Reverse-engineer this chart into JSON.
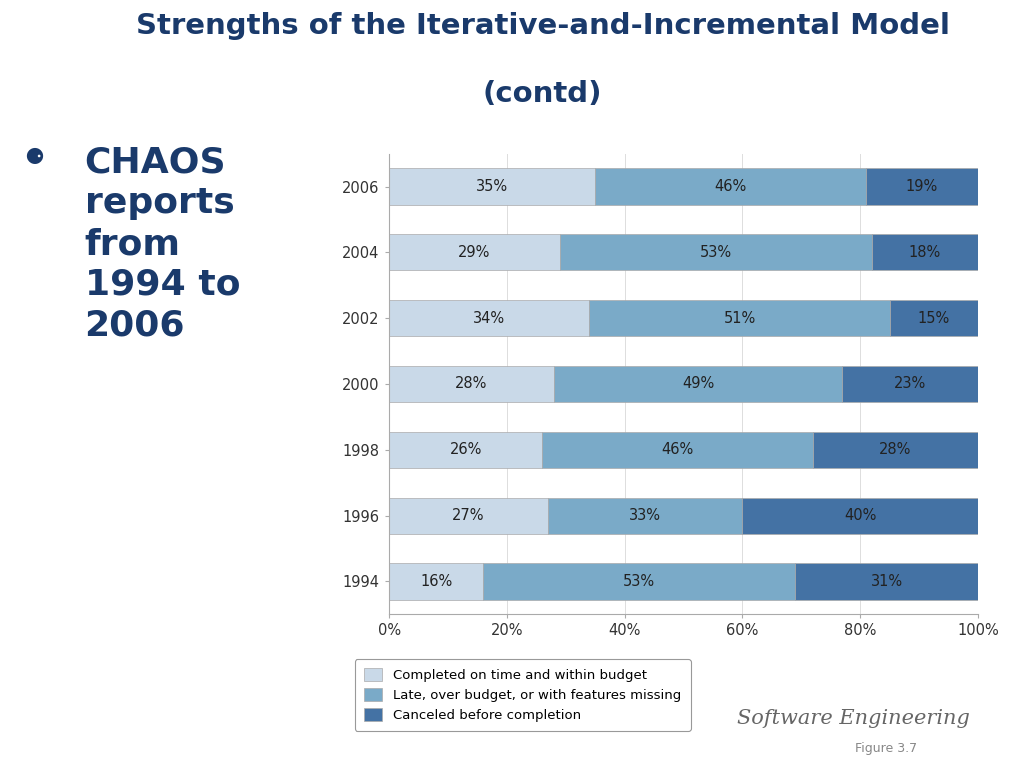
{
  "title_line1": "Strengths of the Iterative-and-Incremental Model",
  "title_line2": "(contd)",
  "title_color": "#1a3a6b",
  "background_color": "#ffffff",
  "bullet_text": "CHAOS\nreports\nfrom\n1994 to\n2006",
  "bullet_color": "#1a3a6b",
  "years": [
    "2006",
    "2004",
    "2002",
    "2000",
    "1998",
    "1996",
    "1994"
  ],
  "completed": [
    35,
    29,
    34,
    28,
    26,
    27,
    16
  ],
  "late": [
    46,
    53,
    51,
    49,
    46,
    33,
    53
  ],
  "canceled": [
    19,
    18,
    15,
    23,
    28,
    40,
    31
  ],
  "color_completed": "#c9d9e8",
  "color_late": "#7aaac8",
  "color_canceled": "#4472a4",
  "legend_labels": [
    "Completed on time and within budget",
    "Late, over budget, or with features missing",
    "Canceled before completion"
  ],
  "xlabel_ticks": [
    "0%",
    "20%",
    "40%",
    "60%",
    "80%",
    "100%"
  ],
  "bar_height": 0.55,
  "footer_text": "Software Engineering",
  "figure_num": "Figure 3.7",
  "divider_color": "#8899bb",
  "bottom_bar_color": "#3a6ea5"
}
